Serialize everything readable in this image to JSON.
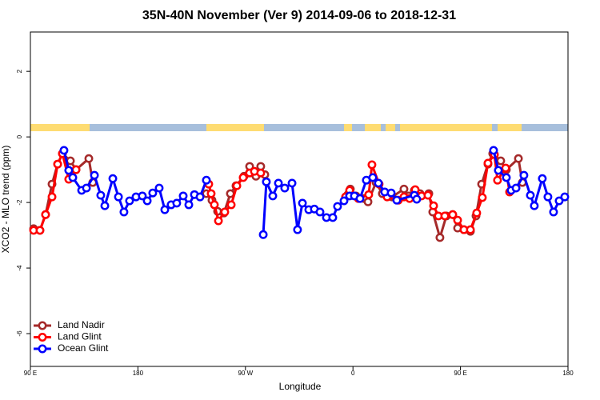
{
  "chart_data": {
    "type": "line",
    "title": "35N-40N November (Ver 9)   2014-09-06 to 2018-12-31",
    "xlabel": "Longitude",
    "ylabel": "XCO2 - MLO trend (ppm)",
    "xlim": [
      90,
      540
    ],
    "ylim": [
      -7,
      3.2
    ],
    "xticks": [
      {
        "value": 90,
        "label": "90 E"
      },
      180,
      {
        "value": 270,
        "label": "90 W"
      },
      {
        "value": 360,
        "label": "0"
      },
      {
        "value": 450,
        "label": "90 E"
      },
      {
        "value": 540,
        "label": "180"
      }
    ],
    "yticks": [
      -6,
      -4,
      -2,
      0,
      2
    ],
    "legend": "lower left",
    "series": [
      {
        "name": "Land Nadir",
        "color": "#a52a2a",
        "x": [
          92.7,
          98.0,
          102.7,
          108.1,
          112.8,
          116.8,
          123.5,
          128.2,
          138.9,
          142.2,
          null,
          237.3,
          242.0,
          246.7,
          252.0,
          257.4,
          262.1,
          268.8,
          273.5,
          278.8,
          282.8,
          286.2,
          null,
          355.8,
          357.8,
          362.5,
          369.2,
          372.6,
          379.3,
          384.6,
          392.7,
          402.7,
          406.7,
          411.4,
          416.1,
          423.5,
          426.8,
          432.8,
          438.2,
          443.5,
          447.6,
          452.9,
          458.3,
          463.0,
          467.7,
          473.0,
          477.0,
          483.7,
          488.4,
          498.5,
          501.8
        ],
        "values": [
          -2.8,
          -2.85,
          -2.37,
          -1.44,
          -0.83,
          -0.51,
          -0.73,
          -1.0,
          -0.66,
          -1.39,
          null,
          -1.73,
          -1.93,
          -2.27,
          -2.32,
          -1.73,
          -1.49,
          -1.2,
          -0.9,
          -1.2,
          -0.9,
          -1.15,
          null,
          -1.76,
          -1.59,
          -1.8,
          -1.88,
          -1.98,
          -1.39,
          -1.73,
          -1.83,
          -1.59,
          -1.8,
          -1.63,
          -1.73,
          -1.73,
          -2.29,
          -3.07,
          -2.41,
          -2.37,
          -2.78,
          -2.83,
          -2.88,
          -2.41,
          -1.44,
          -0.83,
          -0.51,
          -0.73,
          -1.0,
          -0.66,
          -1.39
        ]
      },
      {
        "name": "Land Glint",
        "color": "#ff0000",
        "x": [
          92.7,
          98.0,
          102.7,
          108.1,
          112.8,
          116.8,
          122.1,
          128.2,
          null,
          239.3,
          241.3,
          244.0,
          247.4,
          252.7,
          258.1,
          262.8,
          268.1,
          273.5,
          277.5,
          282.8,
          null,
          353.8,
          357.2,
          364.5,
          373.2,
          375.9,
          381.9,
          388.6,
          398.0,
          402.7,
          407.4,
          412.1,
          417.4,
          422.8,
          427.5,
          431.5,
          436.9,
          443.5,
          447.6,
          452.9,
          458.3,
          463.6,
          468.3,
          473.0,
          478.4,
          481.0,
          487.8,
          491.1
        ],
        "values": [
          -2.85,
          -2.85,
          -2.37,
          -1.83,
          -0.83,
          -0.51,
          -1.29,
          -1.0,
          null,
          -1.44,
          -1.73,
          -2.07,
          -2.56,
          -2.29,
          -2.07,
          -1.49,
          -1.24,
          -1.1,
          -1.05,
          -1.1,
          null,
          -1.83,
          -1.63,
          -1.88,
          -1.76,
          -0.85,
          -1.44,
          -1.83,
          -1.93,
          -1.83,
          -1.88,
          -1.61,
          -1.8,
          -1.78,
          -2.1,
          -2.41,
          -2.41,
          -2.37,
          -2.54,
          -2.83,
          -2.83,
          -2.32,
          -1.85,
          -0.8,
          -0.54,
          -1.32,
          -0.95,
          -1.68
        ]
      },
      {
        "name": "Ocean Glint",
        "color": "#0000ff",
        "x": [
          118.1,
          122.1,
          125.5,
          132.9,
          136.9,
          143.6,
          148.9,
          152.3,
          159.0,
          163.7,
          168.3,
          173.0,
          178.4,
          183.7,
          187.8,
          192.4,
          197.8,
          202.5,
          207.8,
          212.5,
          217.9,
          222.6,
          227.3,
          232.0,
          237.3,
          null,
          284.9,
          287.5,
          292.9,
          297.6,
          302.9,
          309.0,
          313.6,
          317.7,
          323.0,
          327.7,
          332.4,
          337.8,
          343.1,
          347.1,
          352.5,
          357.2,
          361.2,
          365.9,
          371.2,
          376.6,
          381.3,
          386.6,
          392.0,
          396.7,
          411.4,
          413.4,
          null,
          477.7,
          481.7,
          488.4,
          492.4,
          496.5,
          503.1,
          508.5,
          511.8,
          518.5,
          523.2,
          527.9,
          532.6,
          537.3
        ],
        "values": [
          -0.41,
          -1.02,
          -1.24,
          -1.63,
          -1.56,
          -1.17,
          -1.78,
          -2.1,
          -1.27,
          -1.83,
          -2.29,
          -1.95,
          -1.83,
          -1.8,
          -1.95,
          -1.71,
          -1.56,
          -2.22,
          -2.07,
          -2.02,
          -1.8,
          -2.07,
          -1.76,
          -1.83,
          -1.32,
          null,
          -2.98,
          -1.37,
          -1.8,
          -1.41,
          -1.56,
          -1.41,
          -2.83,
          -2.02,
          -2.22,
          -2.2,
          -2.29,
          -2.46,
          -2.46,
          -2.12,
          -1.95,
          -1.8,
          -1.8,
          -1.88,
          -1.32,
          -1.24,
          -1.41,
          -1.68,
          -1.71,
          -1.93,
          -1.78,
          -1.9,
          null,
          -0.41,
          -1.02,
          -1.24,
          -1.63,
          -1.56,
          -1.17,
          -1.78,
          -2.1,
          -1.27,
          -1.83,
          -2.29,
          -1.95,
          -1.83
        ]
      }
    ]
  }
}
